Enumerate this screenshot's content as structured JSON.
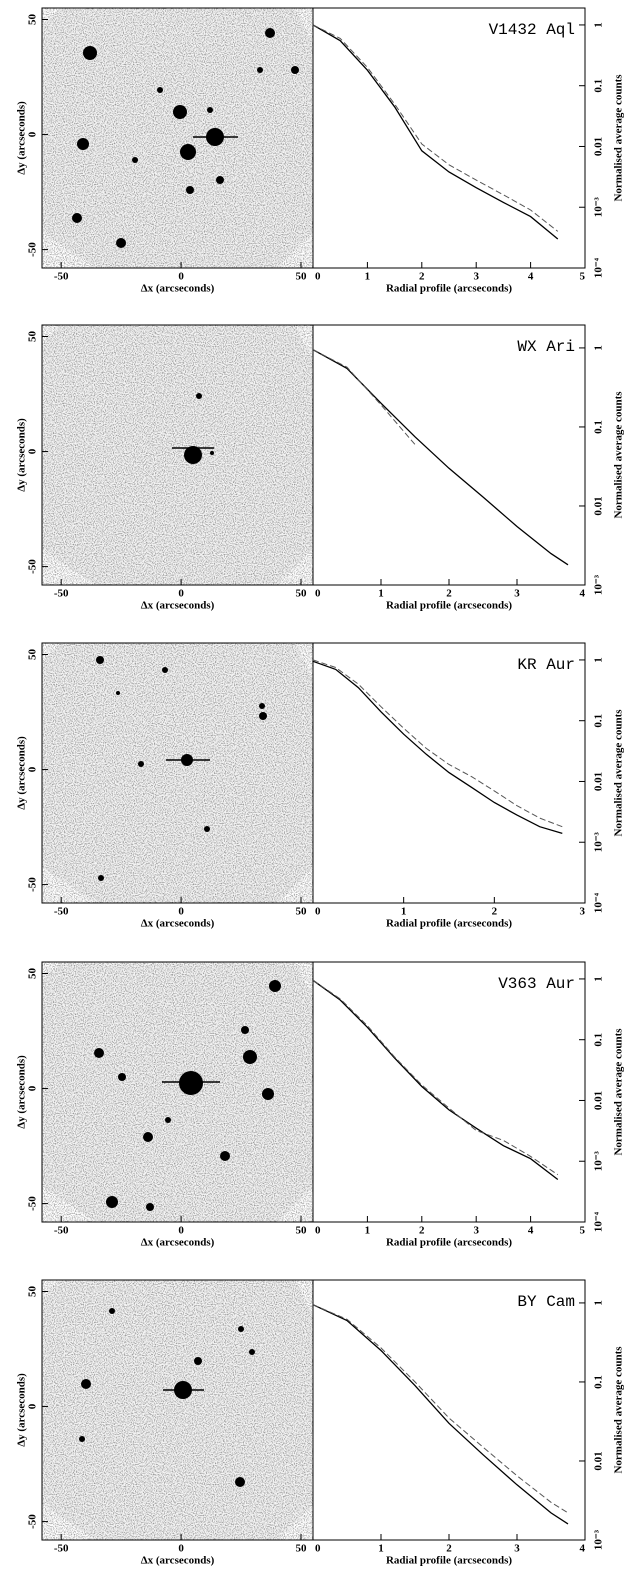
{
  "chart_data": [
    {
      "type": "image",
      "xlabel": "Δx (arcseconds)",
      "ylabel": "Δy (arcseconds)",
      "xlim": [
        -58,
        55
      ],
      "ylim": [
        -58,
        55
      ],
      "xticks": [
        -50,
        0,
        50
      ],
      "yticks": [
        -50,
        0,
        50
      ]
    },
    {
      "type": "line",
      "title": "V1432 Aql",
      "xlabel": "Radial profile (arcseconds)",
      "ylabel": "Normalised average counts",
      "log_y": true,
      "xlim": [
        0,
        5
      ],
      "xticks": [
        0,
        1,
        2,
        3,
        4,
        5
      ],
      "ylim": [
        0.0001,
        1.9
      ],
      "yticks": [
        1,
        0.1,
        0.01,
        {
          "value": 0.001,
          "label": "10⁻³"
        },
        {
          "value": 0.0001,
          "label": "10⁻⁴"
        }
      ],
      "x": [
        0,
        0.5,
        1,
        1.5,
        2,
        2.5,
        3,
        3.5,
        4,
        4.5
      ],
      "series": [
        {
          "style": "solid",
          "color": "#000000",
          "values": [
            1.0,
            0.55,
            0.18,
            0.045,
            0.0085,
            0.0038,
            0.0021,
            0.0012,
            0.0007,
            0.0003
          ]
        },
        {
          "style": "dashed",
          "color": "#555555",
          "values": [
            1.0,
            0.6,
            0.2,
            0.05,
            0.011,
            0.005,
            0.0028,
            0.0016,
            0.0009,
            0.0004
          ]
        }
      ]
    },
    {
      "type": "image",
      "xlabel": "Δx (arcseconds)",
      "ylabel": "Δy (arcseconds)",
      "xlim": [
        -58,
        55
      ],
      "ylim": [
        -58,
        55
      ],
      "xticks": [
        -50,
        0,
        50
      ],
      "yticks": [
        -50,
        0,
        50
      ]
    },
    {
      "type": "line",
      "title": "WX Ari",
      "xlabel": "Radial profile (arcseconds)",
      "ylabel": "Normalised average counts",
      "log_y": true,
      "xlim": [
        0,
        4
      ],
      "xticks": [
        0,
        1,
        2,
        3,
        4
      ],
      "ylim": [
        0.001,
        1.95
      ],
      "yticks": [
        1,
        0.1,
        0.01,
        {
          "value": 0.001,
          "label": "10⁻³"
        }
      ],
      "x": [
        0,
        0.5,
        1,
        1.5,
        2,
        2.5,
        3,
        3.5,
        3.75
      ],
      "series": [
        {
          "style": "solid",
          "color": "#000000",
          "values": [
            0.95,
            0.55,
            0.2,
            0.075,
            0.03,
            0.013,
            0.0055,
            0.0025,
            0.0018
          ]
        },
        {
          "style": "dashed",
          "color": "#555555",
          "values": [
            0.95,
            0.57,
            0.19,
            0.06,
            null,
            null,
            null,
            null,
            null
          ]
        }
      ]
    },
    {
      "type": "image",
      "xlabel": "Δx (arcseconds)",
      "ylabel": "Δy (arcseconds)",
      "xlim": [
        -58,
        55
      ],
      "ylim": [
        -58,
        55
      ],
      "xticks": [
        -50,
        0,
        50
      ],
      "yticks": [
        -50,
        0,
        50
      ]
    },
    {
      "type": "line",
      "title": "KR Aur",
      "xlabel": "Radial profile (arcseconds)",
      "ylabel": "Normalised average counts",
      "log_y": true,
      "xlim": [
        0,
        3
      ],
      "xticks": [
        0,
        1,
        2,
        3
      ],
      "ylim": [
        0.0001,
        1.9
      ],
      "yticks": [
        1,
        0.1,
        0.01,
        {
          "value": 0.001,
          "label": "10⁻³"
        },
        {
          "value": 0.0001,
          "label": "10⁻⁴"
        }
      ],
      "x": [
        0,
        0.25,
        0.5,
        0.75,
        1,
        1.25,
        1.5,
        1.75,
        2,
        2.25,
        2.5,
        2.75
      ],
      "series": [
        {
          "style": "solid",
          "color": "#000000",
          "values": [
            0.95,
            0.7,
            0.35,
            0.14,
            0.06,
            0.028,
            0.014,
            0.008,
            0.0045,
            0.0028,
            0.0018,
            0.0014
          ]
        },
        {
          "style": "dashed",
          "color": "#555555",
          "values": [
            1.0,
            0.75,
            0.4,
            0.17,
            0.075,
            0.035,
            0.019,
            0.012,
            0.007,
            0.004,
            0.0025,
            0.0018
          ]
        }
      ]
    },
    {
      "type": "image",
      "xlabel": "Δx (arcseconds)",
      "ylabel": "Δy (arcseconds)",
      "xlim": [
        -58,
        55
      ],
      "ylim": [
        -58,
        55
      ],
      "xticks": [
        -50,
        0,
        50
      ],
      "yticks": [
        -50,
        0,
        50
      ]
    },
    {
      "type": "line",
      "title": "V363 Aur",
      "xlabel": "Radial profile (arcseconds)",
      "ylabel": "Normalised average counts",
      "log_y": true,
      "xlim": [
        0,
        5
      ],
      "xticks": [
        0,
        1,
        2,
        3,
        4,
        5
      ],
      "ylim": [
        0.0001,
        1.9
      ],
      "yticks": [
        1,
        0.1,
        0.01,
        {
          "value": 0.001,
          "label": "10⁻³"
        },
        {
          "value": 0.0001,
          "label": "10⁻⁴"
        }
      ],
      "x": [
        0,
        0.5,
        1,
        1.5,
        2,
        2.5,
        3,
        3.5,
        4,
        4.5
      ],
      "series": [
        {
          "style": "solid",
          "color": "#000000",
          "values": [
            0.95,
            0.45,
            0.16,
            0.05,
            0.017,
            0.007,
            0.0035,
            0.0018,
            0.0011,
            0.0005
          ]
        },
        {
          "style": "dashed",
          "color": "#555555",
          "values": [
            0.95,
            0.47,
            0.17,
            0.052,
            0.018,
            0.0075,
            0.0032,
            0.0022,
            0.0012,
            0.0006
          ]
        }
      ]
    },
    {
      "type": "image",
      "xlabel": "Δx (arcseconds)",
      "ylabel": "Δy (arcseconds)",
      "xlim": [
        -58,
        55
      ],
      "ylim": [
        -58,
        55
      ],
      "xticks": [
        -50,
        0,
        50
      ],
      "yticks": [
        -50,
        0,
        50
      ]
    },
    {
      "type": "line",
      "title": "BY Cam",
      "xlabel": "Radial profile (arcseconds)",
      "ylabel": "Normalised average counts",
      "log_y": true,
      "xlim": [
        0,
        4
      ],
      "xticks": [
        0,
        1,
        2,
        3,
        4
      ],
      "ylim": [
        0.001,
        1.95
      ],
      "yticks": [
        1,
        0.1,
        0.01,
        {
          "value": 0.001,
          "label": "10⁻³"
        }
      ],
      "x": [
        0,
        0.5,
        1,
        1.5,
        2,
        2.5,
        3,
        3.5,
        3.75
      ],
      "series": [
        {
          "style": "solid",
          "color": "#000000",
          "values": [
            0.95,
            0.6,
            0.25,
            0.09,
            0.03,
            0.012,
            0.005,
            0.0022,
            0.0016
          ]
        },
        {
          "style": "dashed",
          "color": "#555555",
          "values": [
            0.95,
            0.62,
            0.27,
            0.1,
            0.035,
            0.015,
            0.0065,
            0.003,
            0.0022
          ]
        }
      ]
    }
  ]
}
